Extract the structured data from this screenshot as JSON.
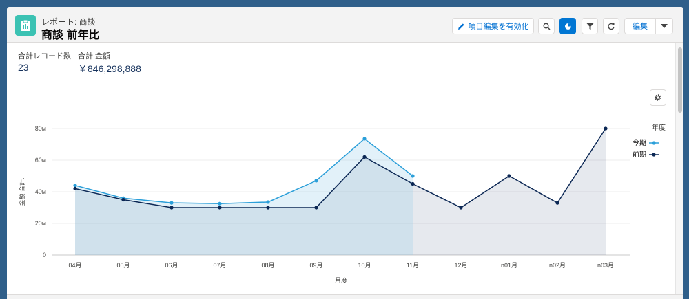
{
  "header": {
    "subtitle": "レポート: 商談",
    "title": "商談 前年比",
    "edit_fields_label": "項目編集を有効化",
    "edit_label": "編集"
  },
  "summary": {
    "record_count_label": "合計レコード数",
    "record_count_value": "23",
    "amount_label": "合計 金額",
    "amount_value": "￥846,298,888"
  },
  "colors": {
    "current": "#2b9fd9",
    "previous": "#0b2754",
    "accent": "#0176d3",
    "app_icon": "#3bc2b3"
  },
  "chart_data": {
    "type": "area",
    "categories": [
      "04月",
      "05月",
      "06月",
      "07月",
      "08月",
      "09月",
      "10月",
      "11月",
      "12月",
      "n01月",
      "n02月",
      "n03月"
    ],
    "xlabel": "月度",
    "ylabel": "金額 合計:",
    "ylim": [
      0,
      80
    ],
    "y_ticks": [
      "0",
      "20м",
      "40м",
      "60м",
      "80м"
    ],
    "y_tick_values": [
      0,
      20,
      40,
      60,
      80
    ],
    "legend_title": "年度",
    "legend_position": "right",
    "grid": true,
    "series": [
      {
        "name": "今期",
        "values": [
          44,
          36,
          33,
          32.5,
          33.5,
          47,
          73.5,
          50,
          null,
          null,
          null,
          null
        ]
      },
      {
        "name": "前期",
        "values": [
          42,
          35,
          30,
          30,
          30,
          30,
          62,
          45,
          30,
          50,
          33,
          80
        ]
      }
    ]
  }
}
